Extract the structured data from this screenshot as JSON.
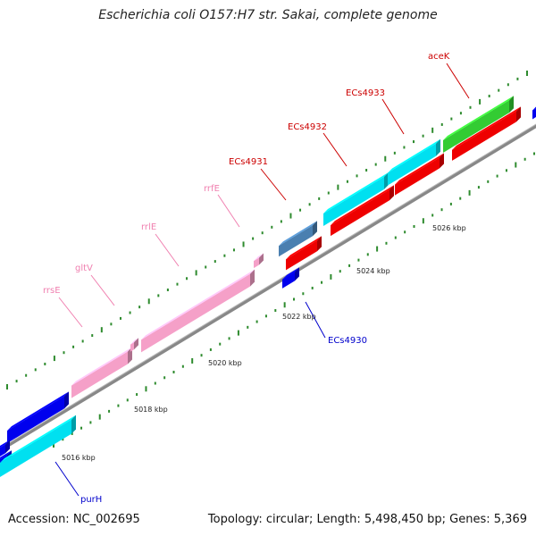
{
  "title": "Escherichia coli O157:H7 str. Sakai, complete genome",
  "footer": {
    "accession": "Accession: NC_002695",
    "summary": "Topology: circular; Length: 5,498,450 bp; Genes: 5,369"
  },
  "colors": {
    "backbone": "#888888",
    "tick": "#2e8b2e",
    "gene_blue": "#0000ee",
    "gene_cyan": "#00e0f0",
    "gene_red": "#ee0000",
    "gene_pink": "#f5a0c8",
    "gene_green": "#33cc33",
    "gene_steel": "#4a7fb0",
    "label_red": "#cc0000",
    "label_pink": "#f080b0",
    "label_blue": "#0000cc"
  },
  "scale_labels": [
    "5016 kbp",
    "5018 kbp",
    "5020 kbp",
    "5022 kbp",
    "5024 kbp",
    "5026 kbp"
  ],
  "features": [
    {
      "name": "purH",
      "color": "gene_blue",
      "label_color": "label_blue"
    },
    {
      "name": "rrsE",
      "color": "gene_pink",
      "label_color": "label_pink"
    },
    {
      "name": "gltV",
      "color": "gene_pink",
      "label_color": "label_pink"
    },
    {
      "name": "rrlE",
      "color": "gene_pink",
      "label_color": "label_pink"
    },
    {
      "name": "rrfE",
      "color": "gene_pink",
      "label_color": "label_pink"
    },
    {
      "name": "ECs4930",
      "color": "gene_blue",
      "label_color": "label_blue"
    },
    {
      "name": "ECs4931",
      "color": "gene_steel",
      "label_color": "label_red"
    },
    {
      "name": "ECs4932",
      "color": "gene_cyan",
      "label_color": "label_red"
    },
    {
      "name": "ECs4933",
      "color": "gene_cyan",
      "label_color": "label_red"
    },
    {
      "name": "aceK",
      "color": "gene_green",
      "label_color": "label_red"
    }
  ]
}
